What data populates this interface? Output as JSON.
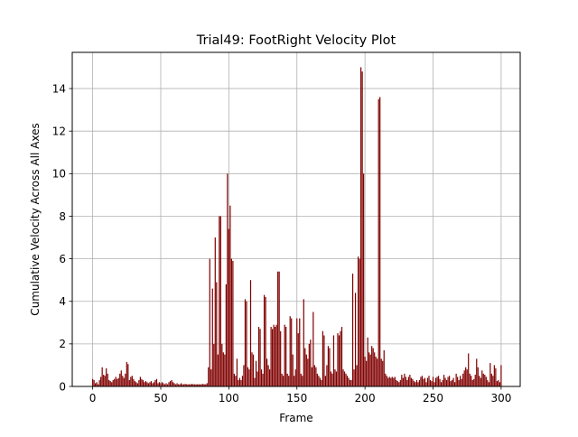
{
  "chart_data": {
    "type": "bar",
    "title": "Trial49: FootRight Velocity Plot",
    "xlabel": "Frame",
    "ylabel": "Cumulative Velocity Across All Axes",
    "xlim": [
      -15,
      314
    ],
    "ylim": [
      0,
      15.7
    ],
    "xticks": [
      0,
      50,
      100,
      150,
      200,
      250,
      300
    ],
    "yticks": [
      0,
      2,
      4,
      6,
      8,
      10,
      12,
      14
    ],
    "grid": true,
    "bar_color": "#800000",
    "series": [
      {
        "x_start": 0,
        "values": [
          0.35,
          0.3,
          0.15,
          0.2,
          0.1,
          0.3,
          0.45,
          0.9,
          0.55,
          0.5,
          0.85,
          0.6,
          0.3,
          0.25,
          0.2,
          0.3,
          0.35,
          0.45,
          0.35,
          0.4,
          0.6,
          0.75,
          0.5,
          0.4,
          0.6,
          1.15,
          1.05,
          0.3,
          0.45,
          0.5,
          0.35,
          0.25,
          0.2,
          0.15,
          0.3,
          0.45,
          0.35,
          0.3,
          0.2,
          0.25,
          0.2,
          0.15,
          0.2,
          0.25,
          0.15,
          0.2,
          0.3,
          0.35,
          0.15,
          0.2,
          0.15,
          0.2,
          0.15,
          0.1,
          0.15,
          0.1,
          0.2,
          0.25,
          0.3,
          0.2,
          0.15,
          0.1,
          0.15,
          0.1,
          0.1,
          0.15,
          0.1,
          0.1,
          0.12,
          0.1,
          0.1,
          0.1,
          0.1,
          0.12,
          0.1,
          0.1,
          0.1,
          0.1,
          0.1,
          0.1,
          0.1,
          0.12,
          0.1,
          0.1,
          0.15,
          0.9,
          6.0,
          0.8,
          4.6,
          2.0,
          7.0,
          4.9,
          1.5,
          8.0,
          8.0,
          2.0,
          1.6,
          1.5,
          4.8,
          10.0,
          7.4,
          8.5,
          6.0,
          5.9,
          0.6,
          0.5,
          1.3,
          0.3,
          0.4,
          0.3,
          0.5,
          1.0,
          4.1,
          4.0,
          0.9,
          0.8,
          5.0,
          1.6,
          1.5,
          0.4,
          1.2,
          0.7,
          2.8,
          2.7,
          0.8,
          0.6,
          4.3,
          4.2,
          1.3,
          1.0,
          0.8,
          2.8,
          2.7,
          2.9,
          2.8,
          2.9,
          5.4,
          5.4,
          2.6,
          0.6,
          0.5,
          2.9,
          2.8,
          0.6,
          0.5,
          3.3,
          3.2,
          1.5,
          0.5,
          0.8,
          3.2,
          2.5,
          3.2,
          0.6,
          0.5,
          4.1,
          1.8,
          1.5,
          1.3,
          2.0,
          2.2,
          0.9,
          3.5,
          1.0,
          0.9,
          0.6,
          0.5,
          0.4,
          0.3,
          2.6,
          2.4,
          0.5,
          1.0,
          1.9,
          1.8,
          0.7,
          0.6,
          2.4,
          0.8,
          0.7,
          2.5,
          2.4,
          2.6,
          2.8,
          0.8,
          0.7,
          0.6,
          0.5,
          0.4,
          0.3,
          0.3,
          5.3,
          0.8,
          4.4,
          1.0,
          6.1,
          6.0,
          15.0,
          14.8,
          10.0,
          1.4,
          1.2,
          2.3,
          1.6,
          1.5,
          1.9,
          1.8,
          1.6,
          1.4,
          1.3,
          13.5,
          13.6,
          1.3,
          1.2,
          1.7,
          0.6,
          0.5,
          0.4,
          0.45,
          0.4,
          0.45,
          0.4,
          0.45,
          0.3,
          0.25,
          0.2,
          0.3,
          0.55,
          0.4,
          0.6,
          0.45,
          0.3,
          0.45,
          0.55,
          0.4,
          0.35,
          0.25,
          0.2,
          0.3,
          0.2,
          0.3,
          0.45,
          0.5,
          0.35,
          0.4,
          0.2,
          0.4,
          0.5,
          0.3,
          0.25,
          0.45,
          0.2,
          0.4,
          0.45,
          0.5,
          0.35,
          0.2,
          0.3,
          0.55,
          0.4,
          0.3,
          0.45,
          0.5,
          0.25,
          0.3,
          0.4,
          0.2,
          0.6,
          0.45,
          0.3,
          0.5,
          0.35,
          0.6,
          0.75,
          0.9,
          0.8,
          1.55,
          0.6,
          0.5,
          0.3,
          0.35,
          0.55,
          1.3,
          0.9,
          0.5,
          0.4,
          0.75,
          0.6,
          0.55,
          0.45,
          0.3,
          0.2,
          1.1,
          0.6,
          0.5,
          1.0,
          0.85,
          0.25,
          0.3,
          0.2,
          1.0
        ]
      }
    ]
  }
}
